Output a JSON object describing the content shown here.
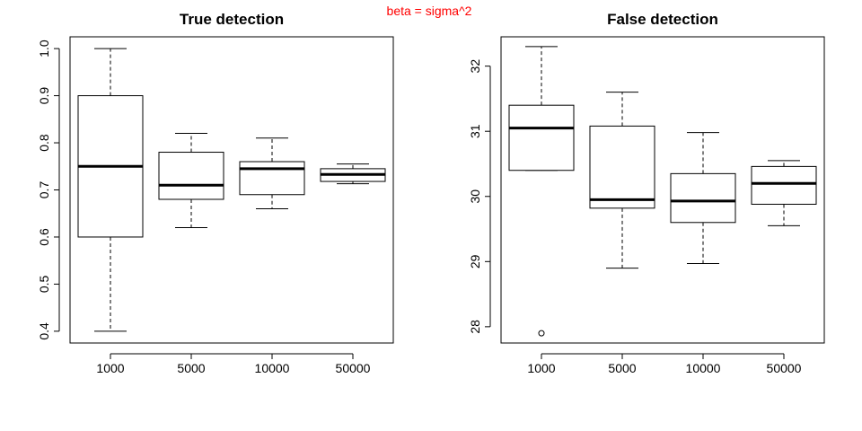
{
  "annotation": "beta = sigma^2",
  "chart_data": [
    {
      "type": "boxplot",
      "title": "True detection",
      "xlabel": "",
      "ylabel": "",
      "categories": [
        "1000",
        "5000",
        "10000",
        "50000"
      ],
      "ylim": [
        0.375,
        1.025
      ],
      "yticks": [
        "0.4",
        "0.5",
        "0.6",
        "0.7",
        "0.8",
        "0.9",
        "1.0"
      ],
      "boxes": [
        {
          "category": "1000",
          "min": 0.4,
          "q1": 0.6,
          "median": 0.75,
          "q3": 0.9,
          "max": 1.0,
          "outliers": []
        },
        {
          "category": "5000",
          "min": 0.62,
          "q1": 0.68,
          "median": 0.71,
          "q3": 0.78,
          "max": 0.82,
          "outliers": []
        },
        {
          "category": "10000",
          "min": 0.66,
          "q1": 0.69,
          "median": 0.745,
          "q3": 0.76,
          "max": 0.81,
          "outliers": []
        },
        {
          "category": "50000",
          "min": 0.713,
          "q1": 0.718,
          "median": 0.733,
          "q3": 0.745,
          "max": 0.755,
          "outliers": []
        }
      ],
      "grid": false
    },
    {
      "type": "boxplot",
      "title": "False detection",
      "xlabel": "",
      "ylabel": "",
      "categories": [
        "1000",
        "5000",
        "10000",
        "50000"
      ],
      "ylim": [
        27.75,
        32.45
      ],
      "yticks": [
        "28",
        "29",
        "30",
        "31",
        "32"
      ],
      "boxes": [
        {
          "category": "1000",
          "min": 30.4,
          "q1": 30.4,
          "median": 31.05,
          "q3": 31.4,
          "max": 32.3,
          "outliers": [
            27.9
          ]
        },
        {
          "category": "5000",
          "min": 28.9,
          "q1": 29.82,
          "median": 29.95,
          "q3": 31.08,
          "max": 31.6,
          "outliers": []
        },
        {
          "category": "10000",
          "min": 28.97,
          "q1": 29.6,
          "median": 29.93,
          "q3": 30.35,
          "max": 30.98,
          "outliers": []
        },
        {
          "category": "50000",
          "min": 29.55,
          "q1": 29.88,
          "median": 30.2,
          "q3": 30.46,
          "max": 30.55,
          "outliers": []
        }
      ],
      "grid": false
    }
  ]
}
